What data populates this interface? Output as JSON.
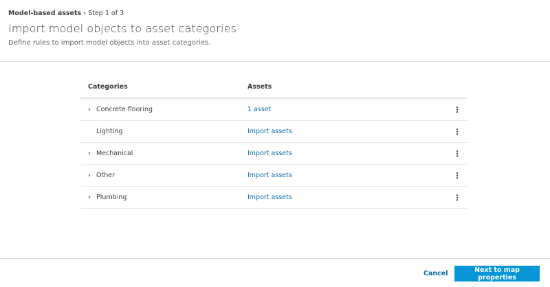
{
  "breadcrumb": {
    "root": "Model-based assets",
    "current": "Step 1 of 3"
  },
  "header": {
    "title": "Import model objects to asset categories",
    "subtitle": "Define rules to import model objects into asset categories."
  },
  "table": {
    "columns": [
      "Categories",
      "Assets"
    ],
    "rows": [
      {
        "category": "Concrete flooring",
        "expandable": true,
        "assets": "1 asset"
      },
      {
        "category": "Lighting",
        "expandable": false,
        "assets": "Import assets"
      },
      {
        "category": "Mechanical",
        "expandable": true,
        "assets": "Import assets"
      },
      {
        "category": "Other",
        "expandable": true,
        "assets": "Import assets"
      },
      {
        "category": "Plumbing",
        "expandable": true,
        "assets": "Import assets"
      }
    ]
  },
  "footer": {
    "cancel_label": "Cancel",
    "next_label": "Next to map properties"
  },
  "colors": {
    "accent": "#0696d7",
    "link": "#0b6aa8"
  }
}
